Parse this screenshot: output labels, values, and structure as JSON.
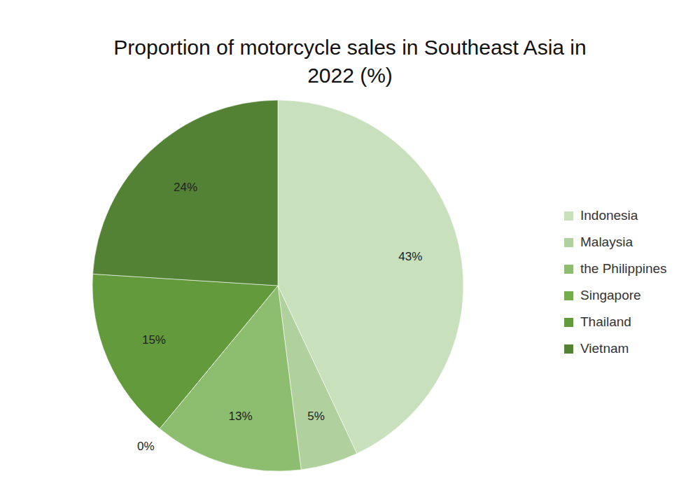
{
  "chart_data": {
    "type": "pie",
    "title": "Proportion of motorcycle sales in Southeast Asia in 2022 (%)",
    "categories": [
      "Indonesia",
      "Malaysia",
      "the Philippines",
      "Singapore",
      "Thailand",
      "Vietnam"
    ],
    "values": [
      43,
      5,
      13,
      0,
      15,
      24
    ],
    "value_labels": [
      "43%",
      "5%",
      "13%",
      "0%",
      "15%",
      "24%"
    ],
    "colors": [
      "#c9e0bd",
      "#b0d19e",
      "#8dbd6e",
      "#75ad4c",
      "#639a3c",
      "#548235"
    ],
    "data_labels": true,
    "legend": "right"
  }
}
